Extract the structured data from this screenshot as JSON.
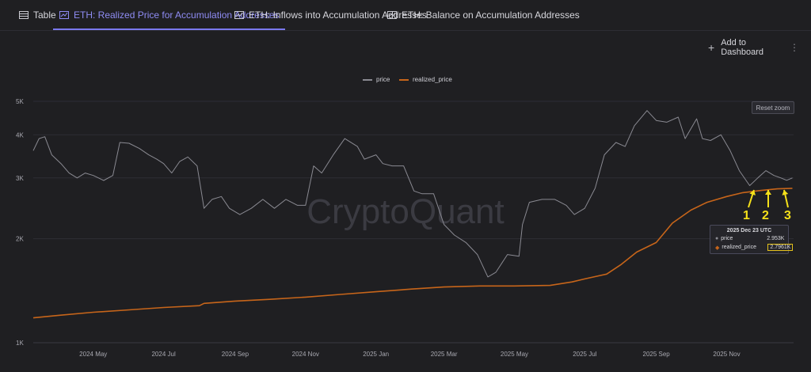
{
  "tabs": [
    {
      "label": "Table",
      "icon": "table-icon",
      "active": false
    },
    {
      "label": "ETH: Realized Price for Accumulation Addresses",
      "icon": "line-chart-icon",
      "active": true
    },
    {
      "label": "ETH: Inflows into Accumulation Addresses",
      "icon": "line-chart-icon",
      "active": false
    },
    {
      "label": "ETH: Balance on Accumulation Addresses",
      "icon": "line-chart-icon",
      "active": false
    }
  ],
  "toolbar": {
    "add_label": "Add to Dashboard",
    "more_label": "⋮"
  },
  "reset_zoom_label": "Reset zoom",
  "watermark": "CryptoQuant",
  "colors": {
    "price": "#8a8a92",
    "realized_price": "#c7651a",
    "annotation": "#f5e11a",
    "accent": "#7a78ee"
  },
  "tooltip": {
    "title": "2025 Dec 23 UTC",
    "rows": [
      {
        "label": "price",
        "value": "2.953K"
      },
      {
        "label": "realized_price",
        "value": "2.7961K"
      }
    ]
  },
  "annotations": [
    "1",
    "2",
    "3"
  ],
  "chart_data": {
    "type": "line",
    "x_axis_type": "date",
    "y_scale": "log",
    "ylim": [
      1000,
      5000
    ],
    "yticks": [
      {
        "value": 1000,
        "label": "1K"
      },
      {
        "value": 2000,
        "label": "2K"
      },
      {
        "value": 3000,
        "label": "3K"
      },
      {
        "value": 4000,
        "label": "4K"
      },
      {
        "value": 5000,
        "label": "5K"
      }
    ],
    "xticks": [
      {
        "date": "2024-05-01",
        "label": "2024 May"
      },
      {
        "date": "2024-07-01",
        "label": "2024 Jul"
      },
      {
        "date": "2024-09-01",
        "label": "2024 Sep"
      },
      {
        "date": "2024-11-01",
        "label": "2024 Nov"
      },
      {
        "date": "2025-01-01",
        "label": "2025 Jan"
      },
      {
        "date": "2025-03-01",
        "label": "2025 Mar"
      },
      {
        "date": "2025-05-01",
        "label": "2025 May"
      },
      {
        "date": "2025-07-01",
        "label": "2025 Jul"
      },
      {
        "date": "2025-09-01",
        "label": "2025 Sep"
      },
      {
        "date": "2025-11-01",
        "label": "2025 Nov"
      }
    ],
    "legend_position": "top-center",
    "series": [
      {
        "name": "price",
        "x": [
          "2024-03-10",
          "2024-03-15",
          "2024-03-20",
          "2024-03-26",
          "2024-04-03",
          "2024-04-10",
          "2024-04-17",
          "2024-04-24",
          "2024-05-01",
          "2024-05-10",
          "2024-05-18",
          "2024-05-24",
          "2024-06-01",
          "2024-06-10",
          "2024-06-18",
          "2024-06-25",
          "2024-07-01",
          "2024-07-08",
          "2024-07-15",
          "2024-07-22",
          "2024-07-30",
          "2024-08-05",
          "2024-08-12",
          "2024-08-20",
          "2024-08-27",
          "2024-09-05",
          "2024-09-15",
          "2024-09-25",
          "2024-10-05",
          "2024-10-15",
          "2024-10-25",
          "2024-11-01",
          "2024-11-08",
          "2024-11-15",
          "2024-11-25",
          "2024-12-05",
          "2024-12-16",
          "2024-12-22",
          "2025-01-01",
          "2025-01-07",
          "2025-01-15",
          "2025-01-25",
          "2025-02-03",
          "2025-02-10",
          "2025-02-20",
          "2025-03-01",
          "2025-03-10",
          "2025-03-20",
          "2025-03-30",
          "2025-04-08",
          "2025-04-15",
          "2025-04-25",
          "2025-05-05",
          "2025-05-08",
          "2025-05-14",
          "2025-05-25",
          "2025-06-05",
          "2025-06-15",
          "2025-06-22",
          "2025-07-01",
          "2025-07-10",
          "2025-07-18",
          "2025-07-28",
          "2025-08-05",
          "2025-08-13",
          "2025-08-24",
          "2025-09-01",
          "2025-09-10",
          "2025-09-20",
          "2025-09-26",
          "2025-10-06",
          "2025-10-11",
          "2025-10-18",
          "2025-10-27",
          "2025-11-04",
          "2025-11-12",
          "2025-11-21",
          "2025-11-28",
          "2025-12-05",
          "2025-12-12",
          "2025-12-18",
          "2025-12-23",
          "2025-12-28"
        ],
        "y": [
          3600,
          3900,
          3950,
          3500,
          3300,
          3100,
          3000,
          3100,
          3050,
          2950,
          3050,
          3800,
          3780,
          3650,
          3500,
          3400,
          3300,
          3100,
          3350,
          3450,
          3250,
          2450,
          2600,
          2650,
          2450,
          2350,
          2450,
          2600,
          2450,
          2600,
          2500,
          2500,
          3250,
          3100,
          3500,
          3900,
          3700,
          3400,
          3500,
          3300,
          3250,
          3250,
          2750,
          2700,
          2700,
          2200,
          2050,
          1950,
          1800,
          1550,
          1600,
          1800,
          1780,
          2200,
          2550,
          2600,
          2600,
          2500,
          2350,
          2450,
          2800,
          3500,
          3800,
          3700,
          4250,
          4700,
          4400,
          4350,
          4500,
          3900,
          4450,
          3900,
          3850,
          4000,
          3600,
          3150,
          2850,
          3000,
          3150,
          3050,
          3000,
          2953,
          3000
        ]
      },
      {
        "name": "realized_price",
        "x": [
          "2024-03-10",
          "2024-04-01",
          "2024-05-01",
          "2024-06-01",
          "2024-07-01",
          "2024-08-01",
          "2024-08-05",
          "2024-09-01",
          "2024-10-01",
          "2024-11-01",
          "2024-12-01",
          "2025-01-01",
          "2025-02-01",
          "2025-03-01",
          "2025-04-01",
          "2025-05-01",
          "2025-06-01",
          "2025-06-20",
          "2025-07-01",
          "2025-07-20",
          "2025-08-01",
          "2025-08-15",
          "2025-09-01",
          "2025-09-15",
          "2025-10-01",
          "2025-10-15",
          "2025-11-01",
          "2025-11-15",
          "2025-12-01",
          "2025-12-15",
          "2025-12-23",
          "2025-12-28"
        ],
        "y": [
          1180,
          1200,
          1225,
          1245,
          1265,
          1280,
          1300,
          1320,
          1335,
          1355,
          1380,
          1405,
          1430,
          1450,
          1460,
          1460,
          1465,
          1500,
          1530,
          1580,
          1680,
          1830,
          1950,
          2220,
          2420,
          2550,
          2650,
          2720,
          2760,
          2790,
          2796,
          2800
        ]
      }
    ]
  }
}
